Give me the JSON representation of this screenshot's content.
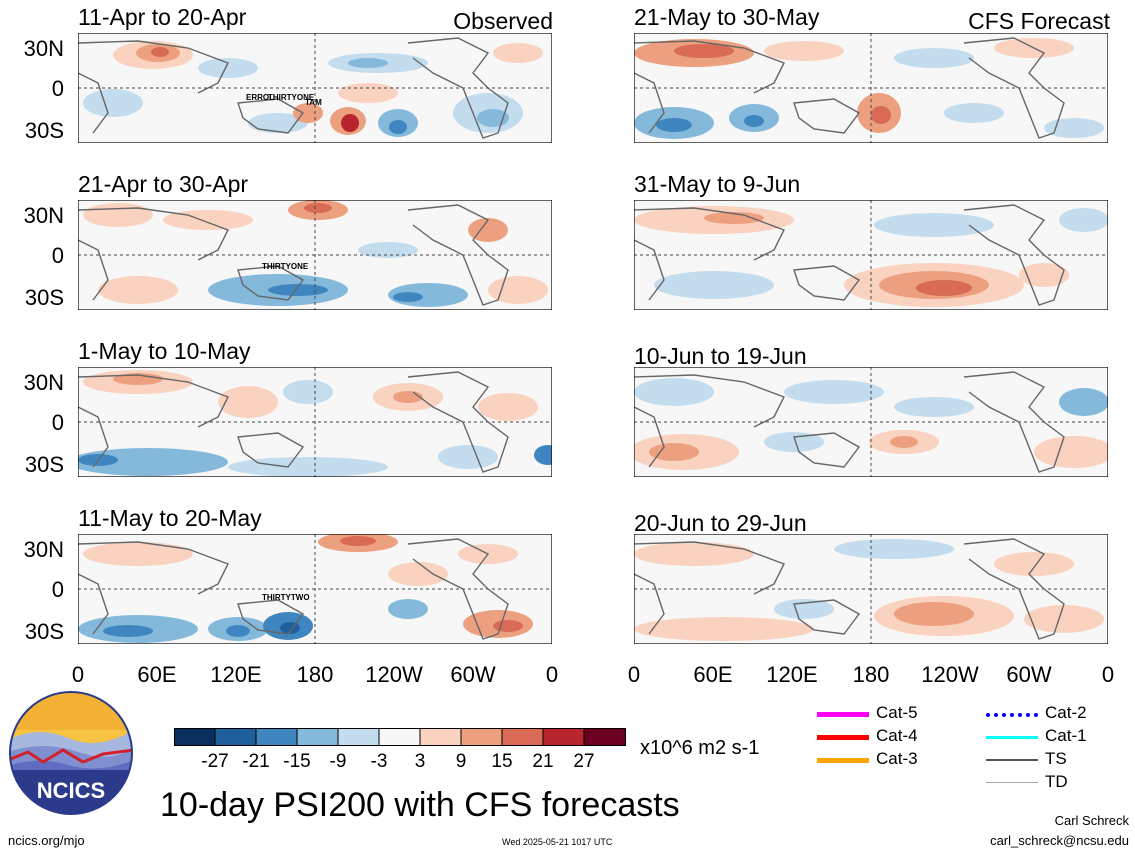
{
  "panels": [
    {
      "title": "11-Apr to 20-Apr",
      "corner": "Observed",
      "storms": [
        "ERROL",
        "THIRTYONE",
        "TAM"
      ]
    },
    {
      "title": "21-Apr to 30-Apr",
      "corner": "",
      "storms": [
        "THIRTYONE"
      ]
    },
    {
      "title": "1-May to 10-May",
      "corner": "",
      "storms": []
    },
    {
      "title": "11-May to 20-May",
      "corner": "",
      "storms": [
        "THIRTYTWO"
      ]
    },
    {
      "title": "21-May to 30-May",
      "corner": "CFS Forecast",
      "storms": []
    },
    {
      "title": "31-May to 9-Jun",
      "corner": "",
      "storms": []
    },
    {
      "title": "10-Jun to 19-Jun",
      "corner": "",
      "storms": []
    },
    {
      "title": "20-Jun to 29-Jun",
      "corner": "",
      "storms": []
    }
  ],
  "y_ticks": [
    "30N",
    "0",
    "30S"
  ],
  "x_ticks": [
    "0",
    "60E",
    "120E",
    "180",
    "120W",
    "60W",
    "0"
  ],
  "colorbar": {
    "labels": [
      "-27",
      "-21",
      "-15",
      "-9",
      "-3",
      "3",
      "9",
      "15",
      "21",
      "27"
    ],
    "colors": [
      "#0a2f5e",
      "#1f5f9e",
      "#3f86c0",
      "#85b9dc",
      "#c3dcee",
      "#f7f7f7",
      "#f9d2c0",
      "#eda07f",
      "#d96a55",
      "#b7262f",
      "#6b0020"
    ],
    "units": "x10^6 m2 s-1"
  },
  "legend": [
    {
      "label": "Cat-5",
      "color": "#ff00ff"
    },
    {
      "label": "Cat-4",
      "color": "#ff0000"
    },
    {
      "label": "Cat-3",
      "color": "#ffa500"
    },
    {
      "label": "Cat-2",
      "color": "#0000ff"
    },
    {
      "label": "Cat-1",
      "color": "#00ffff"
    },
    {
      "label": "TS",
      "color": "#555555"
    },
    {
      "label": "TD",
      "color": "#aaaaaa"
    }
  ],
  "logo_text": "NCICS",
  "main_title": "10-day PSI200 with CFS forecasts",
  "footer": {
    "url": "ncics.org/mjo",
    "timestamp": "Wed 2025-05-21 1017 UTC",
    "author": "Carl Schreck",
    "email": "carl_schreck@ncsu.edu"
  }
}
